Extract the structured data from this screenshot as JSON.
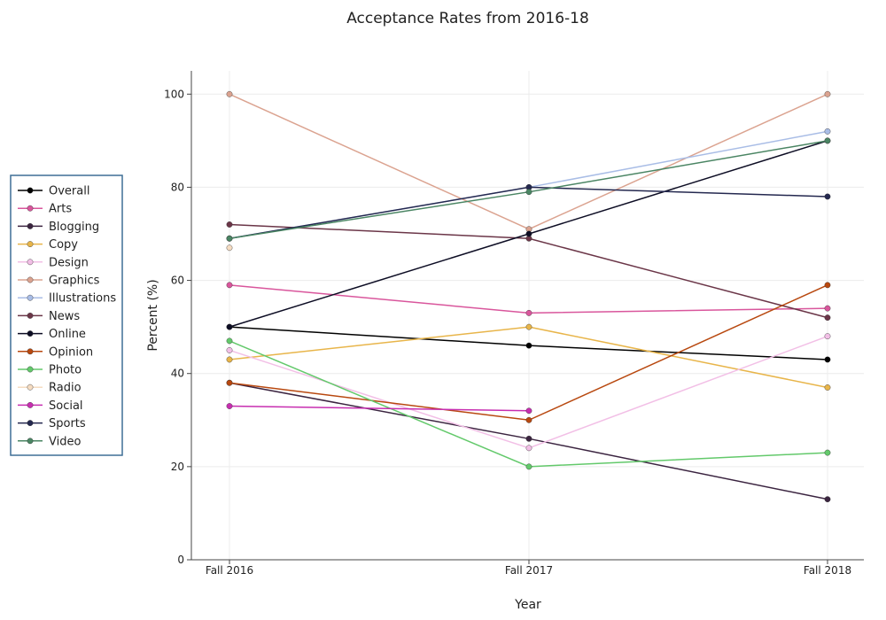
{
  "chart_data": {
    "type": "line",
    "title": "Acceptance Rates from 2016-18",
    "xlabel": "Year",
    "ylabel": "Percent (%)",
    "categories": [
      "Fall 2016",
      "Fall 2017",
      "Fall 2018"
    ],
    "ylim": [
      0,
      105
    ],
    "yticks": [
      0,
      20,
      40,
      60,
      80,
      100
    ],
    "grid": true,
    "legend_position": "left",
    "series": [
      {
        "name": "Overall",
        "color": "#000000",
        "values": [
          50,
          46,
          43
        ]
      },
      {
        "name": "Arts",
        "color": "#d9569c",
        "values": [
          59,
          53,
          54
        ]
      },
      {
        "name": "Blogging",
        "color": "#3b2440",
        "values": [
          38,
          26,
          13
        ]
      },
      {
        "name": "Copy",
        "color": "#e8b54a",
        "values": [
          43,
          50,
          37
        ]
      },
      {
        "name": "Design",
        "color": "#f2bfe6",
        "values": [
          45,
          24,
          48
        ]
      },
      {
        "name": "Graphics",
        "color": "#dba390",
        "values": [
          100,
          71,
          100
        ]
      },
      {
        "name": "Illustrations",
        "color": "#a9bde6",
        "values": [
          69,
          80,
          92
        ]
      },
      {
        "name": "News",
        "color": "#6b3648",
        "values": [
          72,
          69,
          52
        ]
      },
      {
        "name": "Online",
        "color": "#0d0d24",
        "values": [
          50,
          70,
          90
        ]
      },
      {
        "name": "Opinion",
        "color": "#b8480f",
        "values": [
          38,
          30,
          59
        ]
      },
      {
        "name": "Photo",
        "color": "#63c96b",
        "values": [
          47,
          20,
          23
        ]
      },
      {
        "name": "Radio",
        "color": "#f5dcc2",
        "values": [
          67,
          null,
          null
        ]
      },
      {
        "name": "Social",
        "color": "#c72eb0",
        "values": [
          33,
          32,
          null
        ]
      },
      {
        "name": "Sports",
        "color": "#24284f",
        "values": [
          69,
          80,
          78
        ]
      },
      {
        "name": "Video",
        "color": "#4a8563",
        "values": [
          69,
          79,
          90
        ]
      }
    ]
  }
}
